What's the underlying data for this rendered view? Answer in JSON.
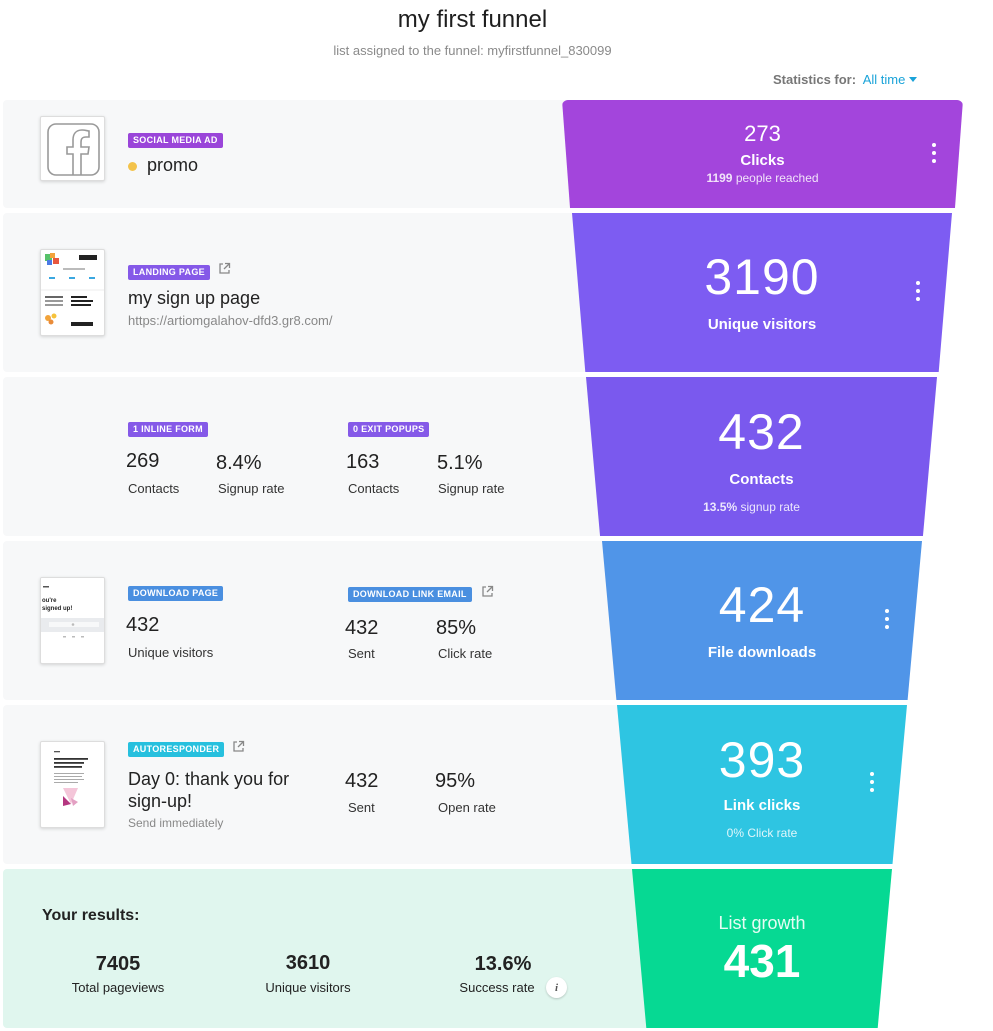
{
  "header": {
    "title": "my first funnel",
    "subtitle": "list assigned to the funnel: myfirstfunnel_830099",
    "stats_label": "Statistics for:",
    "stats_value": "All time"
  },
  "rows": {
    "ad": {
      "tag": "SOCIAL MEDIA AD",
      "name": "promo",
      "status_color": "#f3c34b",
      "icon": "facebook-icon"
    },
    "landing": {
      "tag": "LANDING PAGE",
      "name": "my sign up page",
      "url": "https://artiomgalahov-dfd3.gr8.com/"
    },
    "forms": {
      "inline_tag": "1 INLINE FORM",
      "inline_contacts": "269",
      "inline_contacts_label": "Contacts",
      "inline_rate": "8.4%",
      "inline_rate_label": "Signup rate",
      "popup_tag": "0 EXIT POPUPS",
      "popup_contacts": "163",
      "popup_contacts_label": "Contacts",
      "popup_rate": "5.1%",
      "popup_rate_label": "Signup rate"
    },
    "download": {
      "tag": "DOWNLOAD PAGE",
      "visitors": "432",
      "visitors_label": "Unique visitors",
      "email_tag": "DOWNLOAD LINK EMAIL",
      "sent": "432",
      "sent_label": "Sent",
      "click_rate": "85%",
      "click_rate_label": "Click rate",
      "thumb_text": "ou're\nsigned up!"
    },
    "autoresponder": {
      "tag": "AUTORESPONDER",
      "name": "Day 0: thank you for sign-up!",
      "schedule": "Send immediately",
      "sent": "432",
      "sent_label": "Sent",
      "open_rate": "95%",
      "open_rate_label": "Open rate"
    },
    "results": {
      "title": "Your results:",
      "pageviews": "7405",
      "pageviews_label": "Total pageviews",
      "visitors": "3610",
      "visitors_label": "Unique visitors",
      "success": "13.6%",
      "success_label": "Success rate"
    }
  },
  "funnel": {
    "clicks": {
      "value": "273",
      "label": "Clicks",
      "sub_value": "1199",
      "sub_label": "people reached",
      "color": "#a345dc"
    },
    "visitors": {
      "value": "3190",
      "label": "Unique visitors",
      "color": "#7d5cf2"
    },
    "contacts": {
      "value": "432",
      "label": "Contacts",
      "sub_value": "13.5%",
      "sub_label": "signup rate",
      "color": "#7a59ee"
    },
    "downloads": {
      "value": "424",
      "label": "File downloads",
      "color": "#5095e8"
    },
    "links": {
      "value": "393",
      "label": "Link clicks",
      "sub": "0% Click rate",
      "color": "#2ec5e2"
    },
    "growth": {
      "label": "List growth",
      "value": "431",
      "color": "#06d993"
    }
  }
}
